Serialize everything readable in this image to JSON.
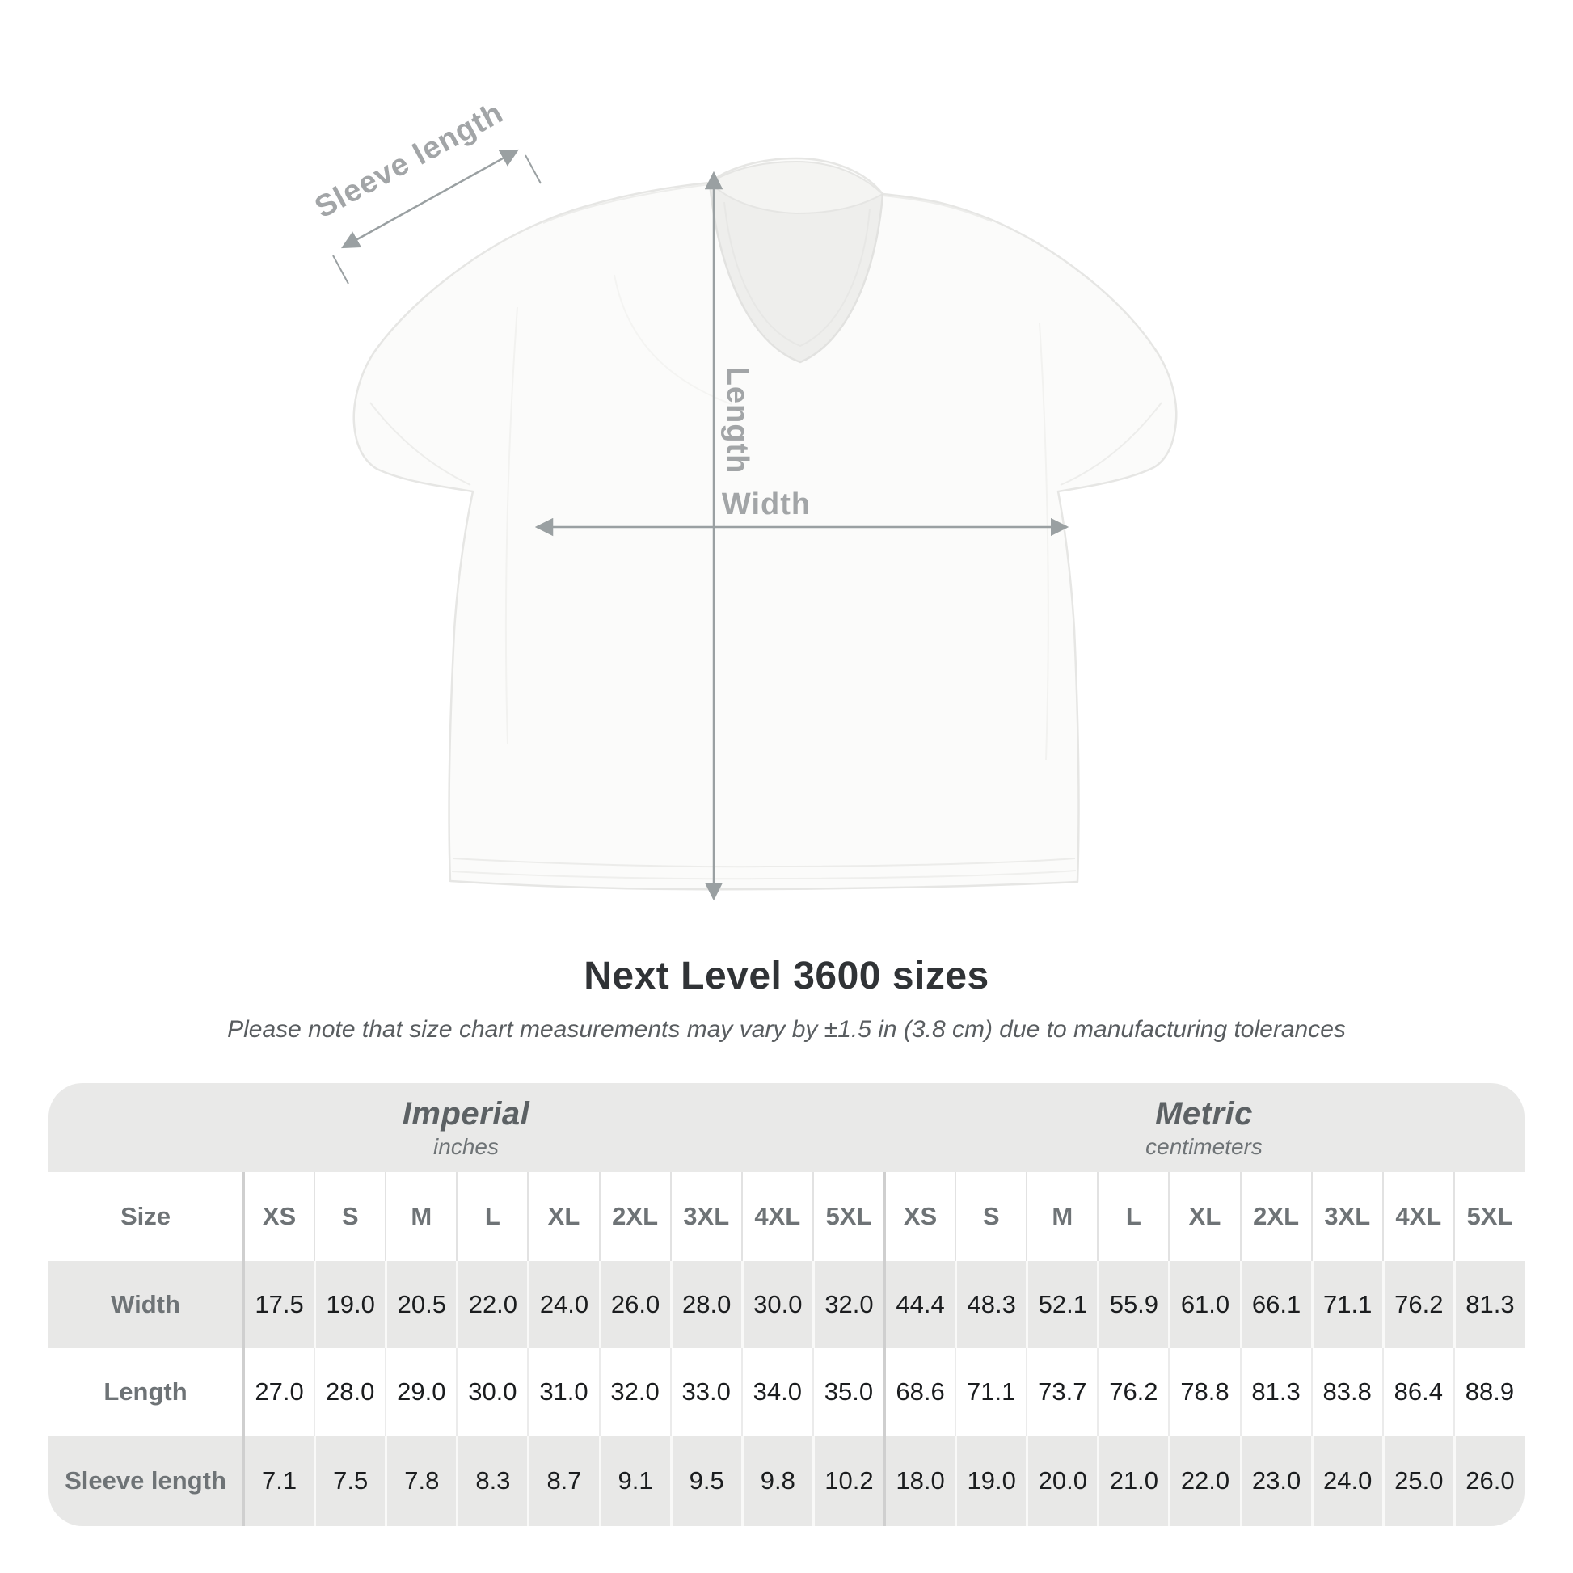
{
  "page": {
    "title": "Next Level 3600 sizes",
    "subtitle": "Please note that size chart measurements may vary by ±1.5 in (3.8 cm) due to manufacturing tolerances"
  },
  "diagram": {
    "sleeve_label": "Sleeve length",
    "length_label": "Length",
    "width_label": "Width"
  },
  "chart_data": {
    "type": "table",
    "title": "Next Level 3600 sizes",
    "note": "Please note that size chart measurements may vary by ±1.5 in (3.8 cm) due to manufacturing tolerances",
    "unit_groups": [
      {
        "label": "Imperial",
        "sublabel": "inches"
      },
      {
        "label": "Metric",
        "sublabel": "centimeters"
      }
    ],
    "size_header": "Size",
    "sizes": [
      "XS",
      "S",
      "M",
      "L",
      "XL",
      "2XL",
      "3XL",
      "4XL",
      "5XL"
    ],
    "rows": [
      {
        "label": "Width",
        "imperial": [
          17.5,
          19.0,
          20.5,
          22.0,
          24.0,
          26.0,
          28.0,
          30.0,
          32.0
        ],
        "metric": [
          44.4,
          48.3,
          52.1,
          55.9,
          61.0,
          66.1,
          71.1,
          76.2,
          81.3
        ]
      },
      {
        "label": "Length",
        "imperial": [
          27.0,
          28.0,
          29.0,
          30.0,
          31.0,
          32.0,
          33.0,
          34.0,
          35.0
        ],
        "metric": [
          68.6,
          71.1,
          73.7,
          76.2,
          78.8,
          81.3,
          83.8,
          86.4,
          88.9
        ]
      },
      {
        "label": "Sleeve length",
        "imperial": [
          7.1,
          7.5,
          7.8,
          8.3,
          8.7,
          9.1,
          9.5,
          9.8,
          10.2
        ],
        "metric": [
          18.0,
          19.0,
          20.0,
          21.0,
          22.0,
          23.0,
          24.0,
          25.0,
          26.0
        ]
      }
    ]
  },
  "colors": {
    "band_gray": "#e9e9e8",
    "row_gray": "#e8e8e7",
    "strong_divider": "#cfcfcf",
    "data_text": "#1b1d1f",
    "header_text": "#6e7376",
    "dim_line": "#9aa0a2",
    "dim_label": "#a2a5a7"
  }
}
